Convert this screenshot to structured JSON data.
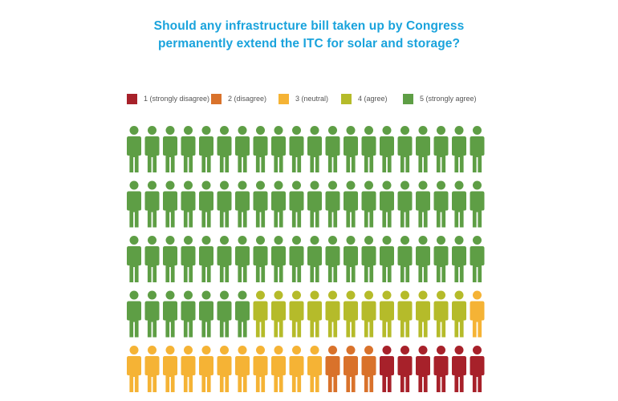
{
  "title": {
    "line1": "Should any infrastructure bill taken up by Congress",
    "line2": "permanently extend the ITC for solar and storage?"
  },
  "legend": [
    {
      "label": "1 (strongly disagree)",
      "color": "#a7212a"
    },
    {
      "label": "2 (disagree)",
      "color": "#d9722b"
    },
    {
      "label": "3 (neutral)",
      "color": "#f5b335"
    },
    {
      "label": "4 (agree)",
      "color": "#b5bb2a"
    },
    {
      "label": "5 (strongly agree)",
      "color": "#5e9e45"
    }
  ],
  "chart_data": {
    "type": "pictograph",
    "rows": 5,
    "columns": 20,
    "categories": [
      "1 (strongly disagree)",
      "2 (disagree)",
      "3 (neutral)",
      "4 (agree)",
      "5 (strongly agree)"
    ],
    "values": [
      6,
      3,
      12,
      12,
      67
    ],
    "unit_icon": "person-icon"
  }
}
